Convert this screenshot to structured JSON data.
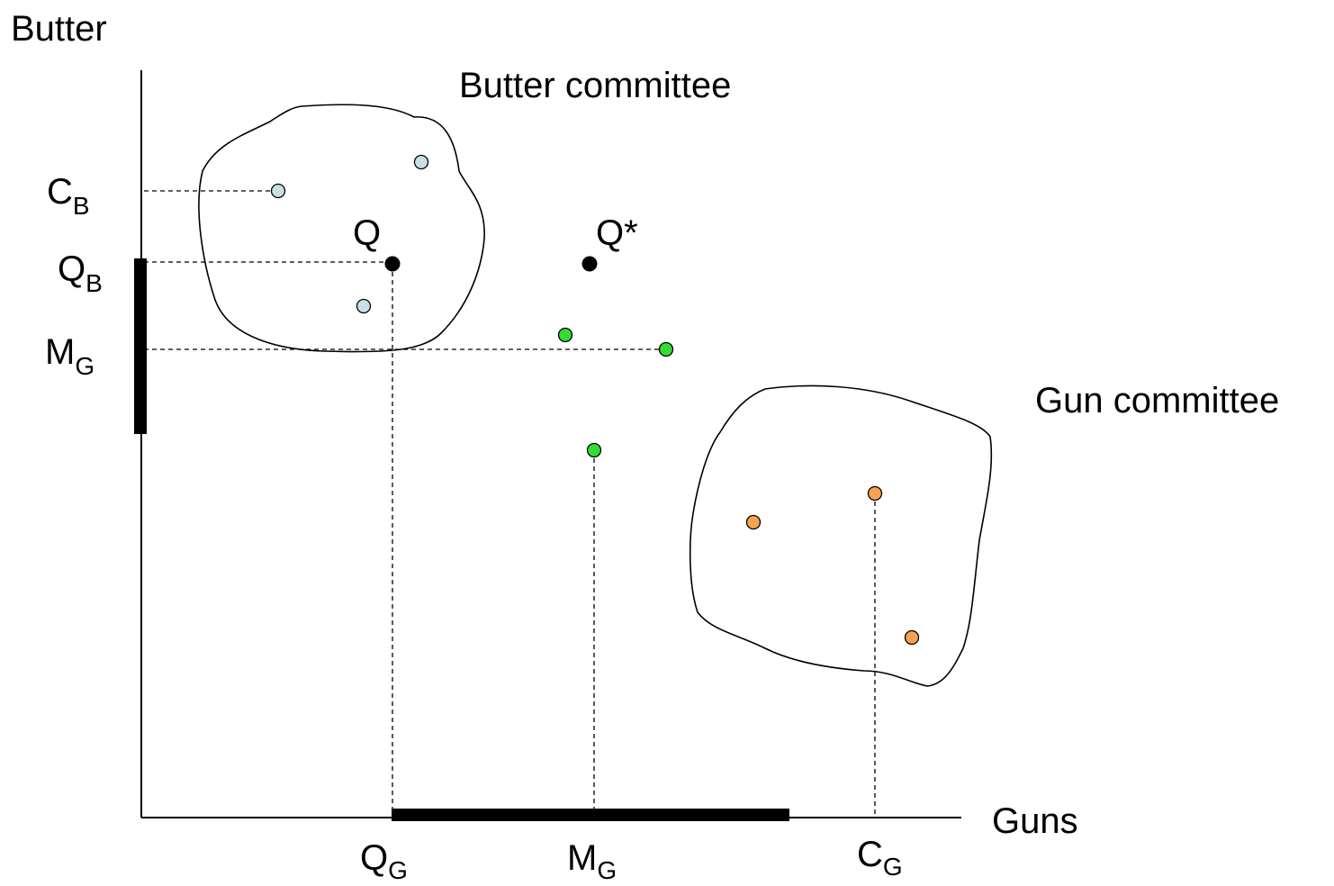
{
  "axes": {
    "y_label": "Butter",
    "x_label": "Guns"
  },
  "regions": [
    {
      "label": "Butter committee"
    },
    {
      "label": "Gun committee"
    }
  ],
  "points": [
    {
      "label": "Q"
    },
    {
      "label": "Q*"
    }
  ],
  "y_markers": [
    {
      "main": "C",
      "sub": "B"
    },
    {
      "main": "Q",
      "sub": "B"
    },
    {
      "main": "M",
      "sub": "G"
    }
  ],
  "x_markers": [
    {
      "main": "Q",
      "sub": "G"
    },
    {
      "main": "M",
      "sub": "G"
    },
    {
      "main": "C",
      "sub": "G"
    }
  ]
}
